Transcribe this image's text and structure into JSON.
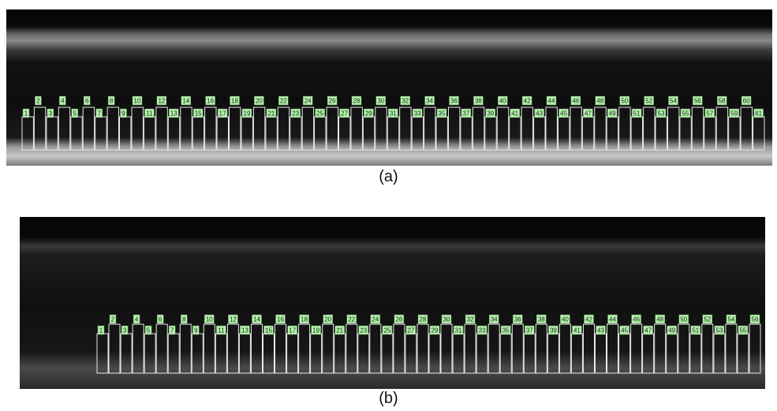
{
  "panel_a": {
    "caption": "(a)",
    "tooth_count": 61,
    "labels": [
      "1",
      "2",
      "3",
      "4",
      "5",
      "6",
      "7",
      "8",
      "9",
      "10",
      "11",
      "12",
      "13",
      "14",
      "15",
      "16",
      "17",
      "18",
      "19",
      "20",
      "21",
      "22",
      "23",
      "24",
      "25",
      "26",
      "27",
      "28",
      "29",
      "30",
      "31",
      "32",
      "33",
      "34",
      "35",
      "36",
      "37",
      "38",
      "39",
      "40",
      "41",
      "42",
      "43",
      "44",
      "45",
      "46",
      "47",
      "48",
      "49",
      "50",
      "51",
      "52",
      "53",
      "54",
      "55",
      "56",
      "57",
      "58",
      "59",
      "60",
      "61"
    ]
  },
  "panel_b": {
    "caption": "(b)",
    "tooth_count": 56,
    "labels": [
      "1",
      "2",
      "3",
      "4",
      "5",
      "6",
      "7",
      "8",
      "9",
      "10",
      "11",
      "12",
      "13",
      "14",
      "15",
      "16",
      "17",
      "18",
      "19",
      "20",
      "21",
      "22",
      "23",
      "24",
      "25",
      "26",
      "27",
      "28",
      "29",
      "30",
      "31",
      "32",
      "33",
      "34",
      "35",
      "36",
      "37",
      "38",
      "39",
      "40",
      "41",
      "42",
      "43",
      "44",
      "45",
      "46",
      "47",
      "48",
      "49",
      "50",
      "51",
      "52",
      "53",
      "54",
      "55",
      "56"
    ]
  },
  "colors": {
    "label_fill": "#b8f0b0",
    "box_stroke": "#e8e8e8",
    "background": "#0b0b0b"
  }
}
